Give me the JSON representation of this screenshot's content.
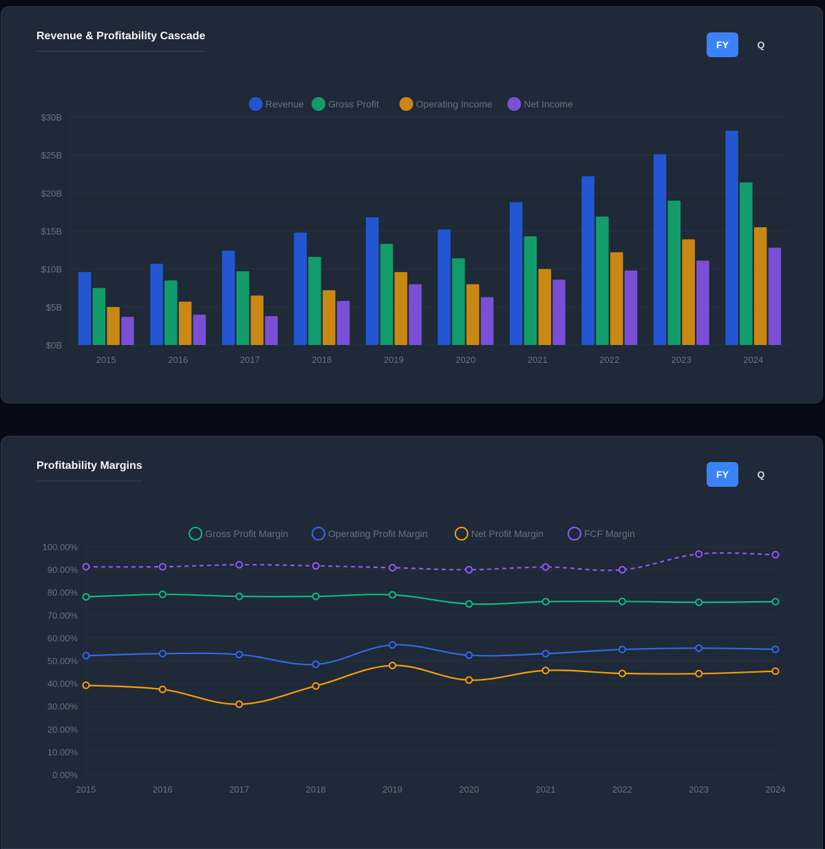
{
  "colors": {
    "revenue": "#2456d3",
    "gross_profit": "#129c6c",
    "operating_income": "#c98714",
    "net_income": "#7a4fd6",
    "gross_margin": "#10b981",
    "operating_margin": "#2f6ae6",
    "net_margin": "#f59e0b",
    "fcf_margin": "#8b5cf6",
    "card_bg": "#1f2937",
    "toggle_active": "#3b82f6"
  },
  "panels": [
    {
      "title": "Revenue & Profitability Cascade",
      "toggle": {
        "options": [
          "FY",
          "Q"
        ],
        "active": "FY"
      }
    },
    {
      "title": "Profitability Margins",
      "toggle": {
        "options": [
          "FY",
          "Q"
        ],
        "active": "FY"
      }
    }
  ],
  "chart_data": [
    {
      "type": "bar",
      "title": "Revenue & Profitability Cascade",
      "categories": [
        "2015",
        "2016",
        "2017",
        "2018",
        "2019",
        "2020",
        "2021",
        "2022",
        "2023",
        "2024"
      ],
      "series": [
        {
          "name": "Revenue",
          "color": "#2456d3",
          "values": [
            9.6,
            10.7,
            12.4,
            14.8,
            16.8,
            15.2,
            18.8,
            22.2,
            25.1,
            28.2
          ]
        },
        {
          "name": "Gross Profit",
          "color": "#129c6c",
          "values": [
            7.5,
            8.5,
            9.7,
            11.6,
            13.3,
            11.4,
            14.3,
            16.9,
            19.0,
            21.4
          ]
        },
        {
          "name": "Operating Income",
          "color": "#c98714",
          "values": [
            5.0,
            5.7,
            6.5,
            7.2,
            9.6,
            8.0,
            10.0,
            12.2,
            13.9,
            15.5
          ]
        },
        {
          "name": "Net Income",
          "color": "#7a4fd6",
          "values": [
            3.7,
            4.0,
            3.8,
            5.8,
            8.0,
            6.3,
            8.6,
            9.8,
            11.1,
            12.8
          ]
        }
      ],
      "ylim": [
        0,
        30
      ],
      "yticks": [
        "$0B",
        "$5B",
        "$10B",
        "$15B",
        "$20B",
        "$25B",
        "$30B"
      ],
      "legend": "top-center",
      "grid": true
    },
    {
      "type": "line",
      "title": "Profitability Margins",
      "x": [
        "2015",
        "2016",
        "2017",
        "2018",
        "2019",
        "2020",
        "2021",
        "2022",
        "2023",
        "2024"
      ],
      "series": [
        {
          "name": "Gross Profit Margin",
          "color": "#10b981",
          "dashed": false,
          "values": [
            78.0,
            79.1,
            78.2,
            78.2,
            78.9,
            74.9,
            75.9,
            76.0,
            75.6,
            75.9
          ]
        },
        {
          "name": "Operating Profit Margin",
          "color": "#2f6ae6",
          "dashed": false,
          "values": [
            52.2,
            53.1,
            52.7,
            48.4,
            56.9,
            52.4,
            53.1,
            54.9,
            55.5,
            55.0
          ]
        },
        {
          "name": "Net Profit Margin",
          "color": "#f59e0b",
          "dashed": false,
          "values": [
            39.2,
            37.4,
            30.9,
            38.9,
            47.9,
            41.5,
            45.7,
            44.4,
            44.3,
            45.4
          ]
        },
        {
          "name": "FCF Margin",
          "color": "#8b5cf6",
          "dashed": true,
          "values": [
            91.2,
            91.2,
            92.1,
            91.6,
            90.8,
            89.9,
            91.1,
            89.9,
            96.8,
            96.5
          ]
        }
      ],
      "ylim": [
        0,
        100
      ],
      "yticks": [
        "0.00%",
        "10.00%",
        "20.00%",
        "30.00%",
        "40.00%",
        "50.00%",
        "60.00%",
        "70.00%",
        "80.00%",
        "90.00%",
        "100.00%"
      ],
      "legend": "top-center",
      "grid": true
    }
  ]
}
